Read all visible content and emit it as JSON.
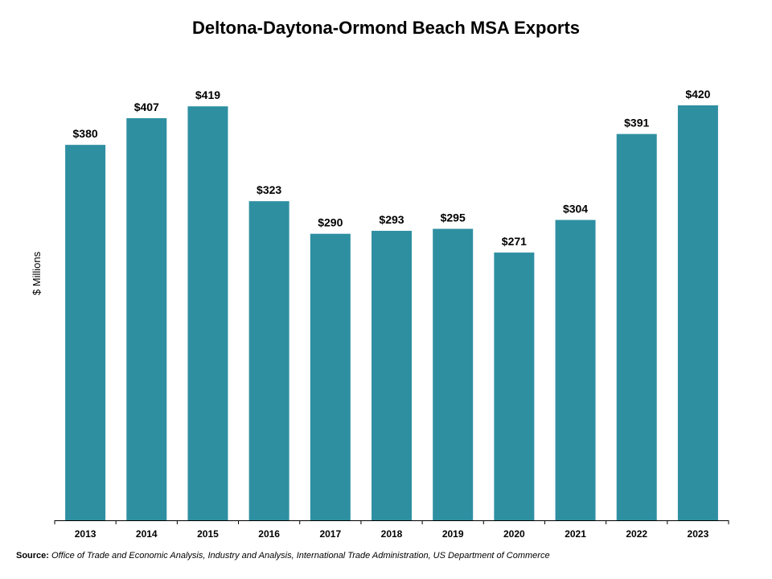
{
  "chart_data": {
    "type": "bar",
    "title": "Deltona-Daytona-Ormond Beach MSA Exports",
    "ylabel": "$ Millions",
    "xlabel": "",
    "categories": [
      "2013",
      "2014",
      "2015",
      "2016",
      "2017",
      "2018",
      "2019",
      "2020",
      "2021",
      "2022",
      "2023"
    ],
    "values": [
      380,
      407,
      419,
      323,
      290,
      293,
      295,
      271,
      304,
      391,
      420
    ],
    "data_labels": [
      "$380",
      "$407",
      "$419",
      "$323",
      "$290",
      "$293",
      "$295",
      "$271",
      "$304",
      "$391",
      "$420"
    ],
    "ylim": [
      0,
      420
    ],
    "grid": false,
    "legend": "none",
    "bar_color": "#2E8FA1"
  },
  "source": {
    "label": "Source:",
    "text": "Office of Trade and Economic Analysis, Industry and Analysis, International Trade Administration, US Department of Commerce"
  }
}
